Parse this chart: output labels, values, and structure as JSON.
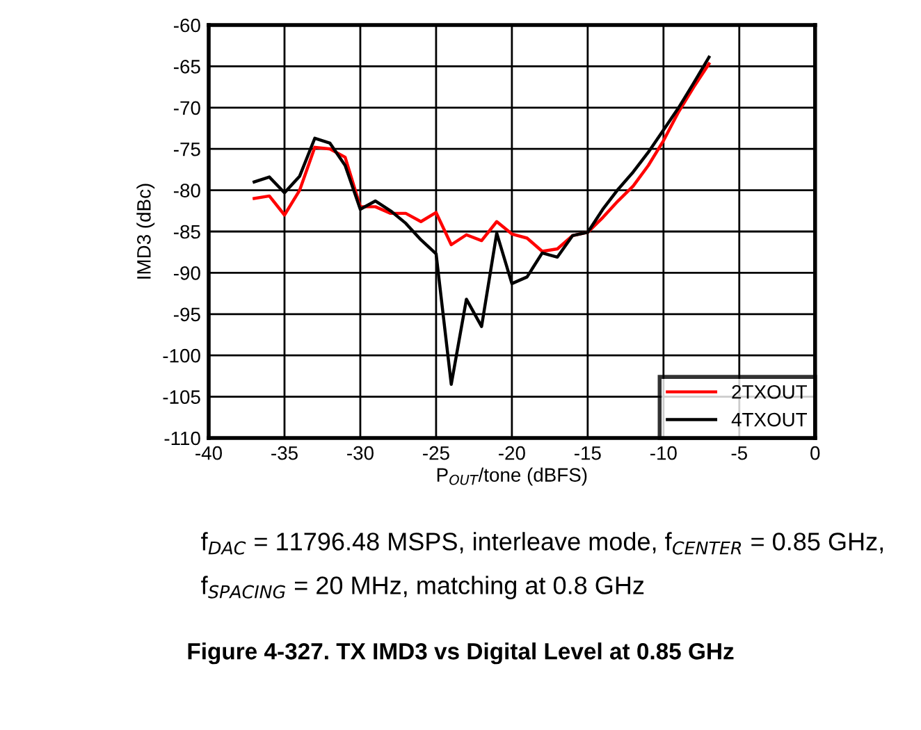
{
  "chart_data": {
    "type": "line",
    "xlabel": "P$_{OUT}$/tone (dBFS)",
    "ylabel": "IMD3 (dBc)",
    "x": [
      -37,
      -36,
      -35,
      -34,
      -33,
      -32,
      -31,
      -30,
      -29,
      -28,
      -27,
      -26,
      -25,
      -24,
      -23,
      -22,
      -21,
      -20,
      -19,
      -18,
      -17,
      -16,
      -15,
      -14,
      -13,
      -12,
      -11,
      -10,
      -9,
      -8,
      -7
    ],
    "series": [
      {
        "name": "2TXOUT",
        "color": "#ff0000",
        "values": [
          -81,
          -80.7,
          -83,
          -80,
          -74.8,
          -75,
          -76,
          -82,
          -82,
          -82.8,
          -82.8,
          -83.8,
          -82.7,
          -86.6,
          -85.4,
          -86.1,
          -83.8,
          -85.3,
          -85.8,
          -87.4,
          -87.1,
          -85.5,
          -85.1,
          -83.3,
          -81.3,
          -79.5,
          -77,
          -74,
          -70.5,
          -67.5,
          -64.7
        ]
      },
      {
        "name": "4TXOUT",
        "color": "#000000",
        "values": [
          -79,
          -78.4,
          -80.3,
          -78.3,
          -73.7,
          -74.3,
          -77,
          -82.3,
          -81.3,
          -82.5,
          -84,
          -86,
          -87.7,
          -103.5,
          -93.2,
          -96.5,
          -85.2,
          -91.3,
          -90.5,
          -87.6,
          -88.1,
          -85.5,
          -85.1,
          -82.3,
          -79.9,
          -77.8,
          -75.4,
          -72.7,
          -70,
          -67,
          -63.9
        ]
      }
    ],
    "xlim": [
      -40,
      0
    ],
    "xticks": [
      -40,
      -35,
      -30,
      -25,
      -20,
      -15,
      -10,
      -5,
      0
    ],
    "ylim": [
      -110,
      -60
    ],
    "yticks": [
      -110,
      -105,
      -100,
      -95,
      -90,
      -85,
      -80,
      -75,
      -70,
      -65,
      -60
    ],
    "grid": true,
    "legend": "bottom right",
    "marker": "none",
    "line_style": "solid",
    "annotations": [
      "f$_{DAC}$ = 11796.48 MSPS, interleave mode, f$_{CENTER}$ = 0.85 GHz,",
      "f$_{SPACING}$ = 20 MHz, matching at 0.8 GHz",
      "Figure 4-327. TX IMD3 vs Digital Level at 0.85 GHz"
    ]
  }
}
